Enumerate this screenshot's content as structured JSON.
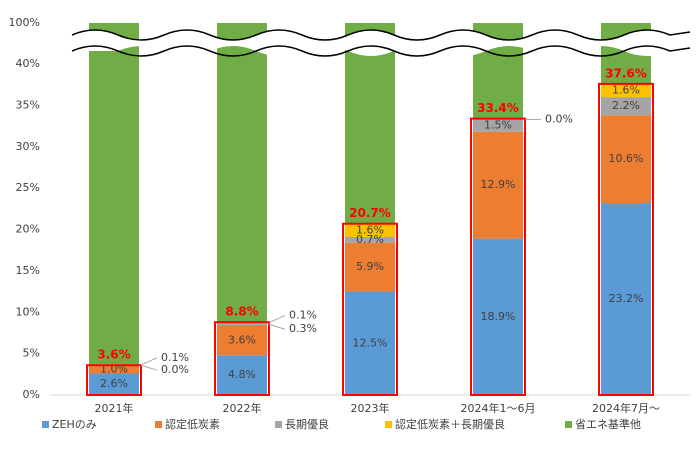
{
  "chart_data": {
    "type": "stacked-bar",
    "categories": [
      "2021年",
      "2022年",
      "2023年",
      "2024年1～6月",
      "2024年7月～"
    ],
    "series": [
      {
        "name": "ZEHのみ",
        "color": "#5b9bd5",
        "values": [
          2.6,
          4.8,
          12.5,
          18.9,
          23.2
        ],
        "value_labels": [
          "2.6%",
          "4.8%",
          "12.5%",
          "18.9%",
          "23.2%"
        ]
      },
      {
        "name": "認定低炭素",
        "color": "#ed7d31",
        "values": [
          1.0,
          3.6,
          5.9,
          12.9,
          10.6
        ],
        "value_labels": [
          "1.0%",
          "3.6%",
          "5.9%",
          "12.9%",
          "10.6%"
        ]
      },
      {
        "name": "長期優良",
        "color": "#a5a5a5",
        "values": [
          0.0,
          0.3,
          0.7,
          1.5,
          2.2
        ],
        "value_labels": [
          "0.0%",
          "0.3%",
          "0.7%",
          "1.5%",
          "2.2%"
        ]
      },
      {
        "name": "認定低炭素＋長期優良",
        "color": "#ffc000",
        "values": [
          0.1,
          0.1,
          1.6,
          0.0,
          1.6
        ],
        "value_labels": [
          "0.1%",
          "0.1%",
          "1.6%",
          "0.0%",
          "1.6%"
        ]
      },
      {
        "name": "省エネ基準他",
        "color": "#70ad47",
        "values": [
          96.4,
          91.2,
          79.3,
          66.6,
          62.4
        ]
      }
    ],
    "totals": {
      "color": "#ff0000",
      "values": [
        3.6,
        8.8,
        20.7,
        33.4,
        37.6
      ],
      "value_labels": [
        "3.6%",
        "8.8%",
        "20.7%",
        "33.4%",
        "37.6%"
      ]
    },
    "ylim": [
      0,
      100
    ],
    "yticks": [
      {
        "value": 0,
        "label": "0%"
      },
      {
        "value": 5,
        "label": "5%"
      },
      {
        "value": 10,
        "label": "10%"
      },
      {
        "value": 15,
        "label": "15%"
      },
      {
        "value": 20,
        "label": "20%"
      },
      {
        "value": 25,
        "label": "25%"
      },
      {
        "value": 30,
        "label": "30%"
      },
      {
        "value": 35,
        "label": "35%"
      },
      {
        "value": 40,
        "label": "40%"
      },
      {
        "value": 100,
        "label": "100%"
      }
    ],
    "legend": "bottom"
  }
}
